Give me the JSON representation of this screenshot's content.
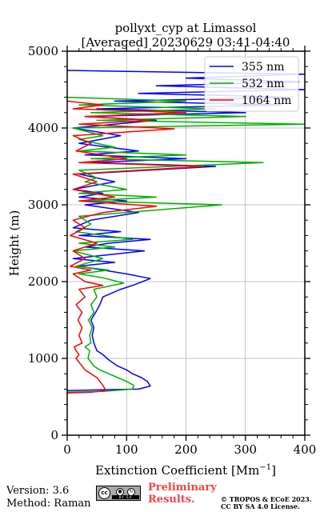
{
  "chart_data": {
    "type": "line",
    "title_line1": "pollyxt_cyp at Limassol",
    "title_line2": "[Averaged] 20230629 03:41-04:40",
    "xlabel": "Extinction Coefficient [Mm",
    "xlabel_sup": "−1",
    "xlabel_end": "]",
    "ylabel": "Height (m)",
    "xlim": [
      0,
      400
    ],
    "ylim": [
      0,
      5000
    ],
    "xticks": [
      0,
      100,
      200,
      300,
      400
    ],
    "xtick_labels": [
      "0",
      "100",
      "200",
      "300",
      "400"
    ],
    "yticks": [
      0,
      1000,
      2000,
      3000,
      4000,
      5000
    ],
    "ytick_labels": [
      "0",
      "1000",
      "2000",
      "3000",
      "4000",
      "5000"
    ],
    "grid": true,
    "legend_position": "top-right",
    "series": [
      {
        "name": "355 nm",
        "color": "#0000ff",
        "points": [
          [
            0,
            580
          ],
          [
            50,
            590
          ],
          [
            120,
            600
          ],
          [
            140,
            640
          ],
          [
            135,
            700
          ],
          [
            125,
            750
          ],
          [
            110,
            800
          ],
          [
            100,
            850
          ],
          [
            85,
            900
          ],
          [
            70,
            980
          ],
          [
            60,
            1050
          ],
          [
            50,
            1100
          ],
          [
            45,
            1200
          ],
          [
            42,
            1300
          ],
          [
            45,
            1400
          ],
          [
            40,
            1500
          ],
          [
            48,
            1600
          ],
          [
            55,
            1700
          ],
          [
            60,
            1800
          ],
          [
            90,
            1900
          ],
          [
            110,
            1950
          ],
          [
            140,
            2040
          ],
          [
            100,
            2100
          ],
          [
            60,
            2150
          ],
          [
            20,
            2200
          ],
          [
            80,
            2250
          ],
          [
            10,
            2300
          ],
          [
            130,
            2400
          ],
          [
            30,
            2450
          ],
          [
            70,
            2500
          ],
          [
            140,
            2550
          ],
          [
            20,
            2600
          ],
          [
            90,
            2650
          ],
          [
            10,
            2700
          ],
          [
            40,
            2800
          ],
          [
            120,
            2900
          ],
          [
            30,
            3000
          ],
          [
            100,
            3050
          ],
          [
            20,
            3100
          ],
          [
            60,
            3150
          ],
          [
            10,
            3200
          ],
          [
            80,
            3300
          ],
          [
            20,
            3400
          ],
          [
            250,
            3500
          ],
          [
            40,
            3550
          ],
          [
            200,
            3600
          ],
          [
            30,
            3650
          ],
          [
            120,
            3700
          ],
          [
            20,
            3800
          ],
          [
            90,
            3900
          ],
          [
            10,
            4000
          ],
          [
            150,
            4100
          ],
          [
            30,
            4150
          ],
          [
            300,
            4200
          ],
          [
            50,
            4250
          ],
          [
            360,
            4300
          ],
          [
            80,
            4350
          ],
          [
            380,
            4400
          ],
          [
            120,
            4450
          ],
          [
            400,
            4500
          ],
          [
            150,
            4550
          ],
          [
            390,
            4600
          ],
          [
            200,
            4650
          ],
          [
            400,
            4700
          ],
          [
            0,
            4750
          ]
        ]
      },
      {
        "name": "532 nm",
        "color": "#00b000",
        "points": [
          [
            0,
            560
          ],
          [
            60,
            570
          ],
          [
            110,
            600
          ],
          [
            112,
            650
          ],
          [
            100,
            700
          ],
          [
            85,
            750
          ],
          [
            70,
            800
          ],
          [
            55,
            850
          ],
          [
            45,
            900
          ],
          [
            40,
            950
          ],
          [
            35,
            1000
          ],
          [
            38,
            1100
          ],
          [
            30,
            1150
          ],
          [
            40,
            1200
          ],
          [
            38,
            1300
          ],
          [
            42,
            1400
          ],
          [
            36,
            1500
          ],
          [
            45,
            1600
          ],
          [
            40,
            1700
          ],
          [
            50,
            1800
          ],
          [
            45,
            1900
          ],
          [
            95,
            1980
          ],
          [
            60,
            2050
          ],
          [
            20,
            2100
          ],
          [
            70,
            2150
          ],
          [
            15,
            2200
          ],
          [
            60,
            2300
          ],
          [
            10,
            2400
          ],
          [
            80,
            2450
          ],
          [
            20,
            2500
          ],
          [
            110,
            2550
          ],
          [
            15,
            2650
          ],
          [
            40,
            2750
          ],
          [
            20,
            2850
          ],
          [
            260,
            3000
          ],
          [
            30,
            3050
          ],
          [
            150,
            3100
          ],
          [
            20,
            3150
          ],
          [
            100,
            3200
          ],
          [
            30,
            3300
          ],
          [
            50,
            3350
          ],
          [
            20,
            3450
          ],
          [
            330,
            3550
          ],
          [
            40,
            3600
          ],
          [
            200,
            3650
          ],
          [
            20,
            3700
          ],
          [
            80,
            3750
          ],
          [
            20,
            3850
          ],
          [
            60,
            3900
          ],
          [
            10,
            4000
          ],
          [
            400,
            4050
          ],
          [
            50,
            4100
          ],
          [
            300,
            4150
          ],
          [
            40,
            4200
          ],
          [
            250,
            4250
          ],
          [
            20,
            4300
          ],
          [
            200,
            4350
          ],
          [
            0,
            4400
          ]
        ]
      },
      {
        "name": "1064 nm",
        "color": "#ff0000",
        "points": [
          [
            0,
            550
          ],
          [
            40,
            560
          ],
          [
            65,
            580
          ],
          [
            60,
            650
          ],
          [
            55,
            700
          ],
          [
            50,
            750
          ],
          [
            40,
            800
          ],
          [
            30,
            850
          ],
          [
            25,
            900
          ],
          [
            20,
            950
          ],
          [
            15,
            1000
          ],
          [
            20,
            1050
          ],
          [
            15,
            1100
          ],
          [
            12,
            1150
          ],
          [
            25,
            1200
          ],
          [
            20,
            1300
          ],
          [
            25,
            1400
          ],
          [
            18,
            1500
          ],
          [
            25,
            1600
          ],
          [
            15,
            1700
          ],
          [
            30,
            1800
          ],
          [
            20,
            1900
          ],
          [
            60,
            1950
          ],
          [
            30,
            2000
          ],
          [
            10,
            2100
          ],
          [
            40,
            2150
          ],
          [
            5,
            2200
          ],
          [
            30,
            2300
          ],
          [
            10,
            2400
          ],
          [
            50,
            2500
          ],
          [
            5,
            2600
          ],
          [
            30,
            2700
          ],
          [
            10,
            2800
          ],
          [
            60,
            2900
          ],
          [
            150,
            2980
          ],
          [
            20,
            3050
          ],
          [
            80,
            3100
          ],
          [
            10,
            3200
          ],
          [
            50,
            3300
          ],
          [
            10,
            3400
          ],
          [
            230,
            3500
          ],
          [
            20,
            3550
          ],
          [
            100,
            3600
          ],
          [
            15,
            3700
          ],
          [
            40,
            3800
          ],
          [
            10,
            3900
          ],
          [
            180,
            3990
          ],
          [
            20,
            4050
          ],
          [
            140,
            4100
          ],
          [
            30,
            4150
          ],
          [
            200,
            4200
          ],
          [
            10,
            4250
          ],
          [
            60,
            4300
          ],
          [
            0,
            4350
          ]
        ]
      }
    ]
  },
  "footer": {
    "version": "Version: 3.6",
    "method": "Method: Raman",
    "preliminary_line1": "Preliminary",
    "preliminary_line2": "Results.",
    "copyright_line1": "© TROPOS & ECoE 2023.",
    "copyright_line2": "CC BY SA 4.0 License."
  },
  "license_logo": {
    "icon": "cc-by-sa-logo",
    "cc_text": "cc",
    "strip_text": "BY SA"
  }
}
